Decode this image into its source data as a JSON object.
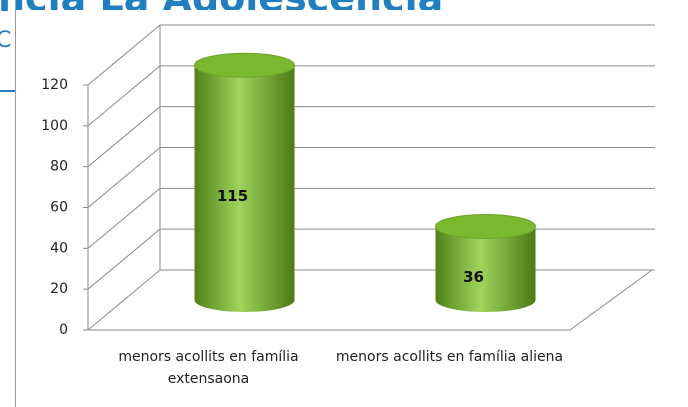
{
  "header": {
    "title": "ncia La Adolescencia",
    "fragment": "C"
  },
  "chart_data": {
    "type": "bar",
    "categories": [
      "menors acollits en família extensaona",
      "menors acollits en família aliena"
    ],
    "values": [
      115,
      36
    ],
    "color": "#7ab830",
    "ylim": [
      0,
      120
    ],
    "yticks": [
      0,
      20,
      40,
      60,
      80,
      100,
      120
    ],
    "grid": true
  }
}
